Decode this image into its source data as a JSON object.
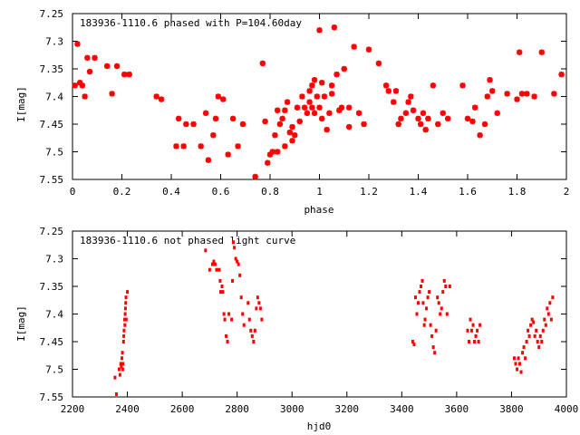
{
  "chart_data": [
    {
      "type": "scatter",
      "title": "183936-1110.6 phased with P=104.60day",
      "xlabel": "phase",
      "ylabel": "I[mag]",
      "xlim": [
        0,
        2
      ],
      "ylim": [
        7.55,
        7.25
      ],
      "xticks": [
        "0",
        "0.2",
        "0.4",
        "0.6",
        "0.8",
        "1",
        "1.2",
        "1.4",
        "1.6",
        "1.8",
        "2"
      ],
      "yticks": [
        "7.25",
        "7.3",
        "7.35",
        "7.4",
        "7.45",
        "7.5",
        "7.55"
      ],
      "grid": false,
      "color": "#ff0000",
      "marker": "asterisk",
      "x": [
        0.01,
        0.02,
        0.03,
        0.04,
        0.05,
        0.06,
        0.07,
        0.09,
        0.14,
        0.16,
        0.18,
        0.21,
        0.23,
        0.34,
        0.36,
        0.42,
        0.43,
        0.45,
        0.46,
        0.49,
        0.52,
        0.54,
        0.55,
        0.57,
        0.58,
        0.59,
        0.61,
        0.63,
        0.65,
        0.67,
        0.69,
        0.74,
        0.77,
        0.78,
        0.79,
        0.8,
        0.81,
        0.82,
        0.83,
        0.84,
        0.85,
        0.86,
        0.87,
        0.88,
        0.89,
        0.9,
        0.91,
        0.92,
        0.93,
        0.94,
        0.95,
        0.96,
        0.97,
        0.98,
        0.99,
        1.0,
        1.01,
        1.02,
        1.03,
        1.04,
        1.05,
        1.06,
        1.07,
        1.08,
        1.09,
        1.1,
        1.12,
        1.14,
        1.16,
        1.18,
        1.2,
        1.24,
        1.27,
        1.28,
        1.3,
        1.31,
        1.32,
        1.33,
        1.35,
        1.36,
        1.37,
        1.38,
        1.4,
        1.41,
        1.42,
        1.43,
        1.44,
        1.46,
        1.48,
        1.5,
        1.52,
        1.58,
        1.6,
        1.62,
        1.63,
        1.65,
        1.67,
        1.68,
        1.69,
        1.7,
        1.72,
        1.76,
        1.8,
        1.81,
        1.82,
        1.84,
        1.87,
        1.9,
        1.95,
        1.98,
        0.97,
        0.98,
        1.0,
        1.05,
        1.12,
        0.89,
        0.86,
        0.83,
        0.96,
        1.01
      ],
      "y": [
        7.38,
        7.305,
        7.375,
        7.38,
        7.4,
        7.33,
        7.355,
        7.33,
        7.345,
        7.395,
        7.345,
        7.36,
        7.36,
        7.4,
        7.405,
        7.49,
        7.44,
        7.49,
        7.45,
        7.45,
        7.49,
        7.43,
        7.515,
        7.47,
        7.44,
        7.4,
        7.405,
        7.505,
        7.44,
        7.49,
        7.45,
        7.545,
        7.34,
        7.445,
        7.52,
        7.505,
        7.5,
        7.47,
        7.5,
        7.45,
        7.44,
        7.49,
        7.41,
        7.465,
        7.48,
        7.47,
        7.42,
        7.445,
        7.4,
        7.42,
        7.43,
        7.41,
        7.38,
        7.37,
        7.4,
        7.28,
        7.375,
        7.4,
        7.46,
        7.43,
        7.38,
        7.275,
        7.36,
        7.425,
        7.42,
        7.35,
        7.42,
        7.31,
        7.43,
        7.45,
        7.315,
        7.34,
        7.38,
        7.39,
        7.41,
        7.39,
        7.45,
        7.44,
        7.43,
        7.41,
        7.4,
        7.425,
        7.44,
        7.45,
        7.43,
        7.46,
        7.44,
        7.38,
        7.45,
        7.43,
        7.44,
        7.38,
        7.44,
        7.445,
        7.42,
        7.47,
        7.45,
        7.4,
        7.37,
        7.39,
        7.43,
        7.395,
        7.405,
        7.32,
        7.395,
        7.395,
        7.4,
        7.32,
        7.395,
        7.36,
        7.42,
        7.43,
        7.42,
        7.395,
        7.455,
        7.455,
        7.425,
        7.425,
        7.39,
        7.44
      ],
      "series": []
    },
    {
      "type": "scatter",
      "title": "183936-1110.6 not phased light curve",
      "xlabel": "hjd0",
      "ylabel": "I[mag]",
      "xlim": [
        2200,
        4000
      ],
      "ylim": [
        7.55,
        7.25
      ],
      "xticks": [
        "2200",
        "2400",
        "2600",
        "2800",
        "3000",
        "3200",
        "3400",
        "3600",
        "3800",
        "4000"
      ],
      "yticks": [
        "7.25",
        "7.3",
        "7.35",
        "7.4",
        "7.45",
        "7.5",
        "7.55"
      ],
      "grid": false,
      "color": "#ff0000",
      "marker": "dot",
      "x": [
        2355,
        2360,
        2370,
        2373,
        2376,
        2378,
        2380,
        2382,
        2383,
        2384,
        2386,
        2387,
        2388,
        2390,
        2391,
        2392,
        2393,
        2394,
        2395,
        2396,
        2400,
        2685,
        2700,
        2710,
        2715,
        2720,
        2725,
        2735,
        2738,
        2740,
        2745,
        2748,
        2752,
        2755,
        2760,
        2765,
        2770,
        2780,
        2783,
        2786,
        2790,
        2795,
        2800,
        2805,
        2810,
        2815,
        2820,
        2825,
        2840,
        2845,
        2850,
        2855,
        2860,
        2865,
        2870,
        2875,
        2880,
        2885,
        2890,
        3440,
        3445,
        3450,
        3455,
        3460,
        3465,
        3470,
        3475,
        3478,
        3482,
        3485,
        3490,
        3495,
        3500,
        3505,
        3510,
        3515,
        3520,
        3525,
        3530,
        3535,
        3540,
        3545,
        3550,
        3555,
        3560,
        3565,
        3575,
        3640,
        3645,
        3650,
        3655,
        3660,
        3665,
        3670,
        3675,
        3680,
        3685,
        3810,
        3815,
        3820,
        3825,
        3830,
        3835,
        3840,
        3845,
        3850,
        3855,
        3860,
        3865,
        3870,
        3875,
        3880,
        3885,
        3890,
        3895,
        3900,
        3905,
        3910,
        3915,
        3920,
        3925,
        3930,
        3935,
        3940,
        3945,
        3950
      ],
      "y": [
        7.515,
        7.545,
        7.5,
        7.51,
        7.49,
        7.495,
        7.48,
        7.47,
        7.5,
        7.49,
        7.45,
        7.44,
        7.43,
        7.41,
        7.42,
        7.4,
        7.39,
        7.38,
        7.37,
        7.41,
        7.36,
        7.285,
        7.32,
        7.31,
        7.305,
        7.31,
        7.32,
        7.32,
        7.34,
        7.36,
        7.35,
        7.36,
        7.4,
        7.41,
        7.44,
        7.45,
        7.4,
        7.41,
        7.34,
        7.27,
        7.28,
        7.3,
        7.305,
        7.31,
        7.33,
        7.37,
        7.4,
        7.42,
        7.38,
        7.41,
        7.43,
        7.44,
        7.45,
        7.43,
        7.39,
        7.37,
        7.38,
        7.39,
        7.41,
        7.45,
        7.455,
        7.37,
        7.4,
        7.38,
        7.36,
        7.35,
        7.34,
        7.38,
        7.42,
        7.41,
        7.39,
        7.37,
        7.36,
        7.42,
        7.44,
        7.46,
        7.47,
        7.43,
        7.37,
        7.38,
        7.4,
        7.39,
        7.36,
        7.34,
        7.35,
        7.4,
        7.35,
        7.43,
        7.45,
        7.41,
        7.43,
        7.42,
        7.45,
        7.44,
        7.43,
        7.45,
        7.42,
        7.48,
        7.49,
        7.5,
        7.48,
        7.49,
        7.505,
        7.47,
        7.46,
        7.48,
        7.45,
        7.43,
        7.44,
        7.42,
        7.41,
        7.415,
        7.44,
        7.43,
        7.45,
        7.46,
        7.44,
        7.45,
        7.43,
        7.41,
        7.42,
        7.39,
        7.4,
        7.38,
        7.41,
        7.37
      ],
      "series": []
    }
  ]
}
